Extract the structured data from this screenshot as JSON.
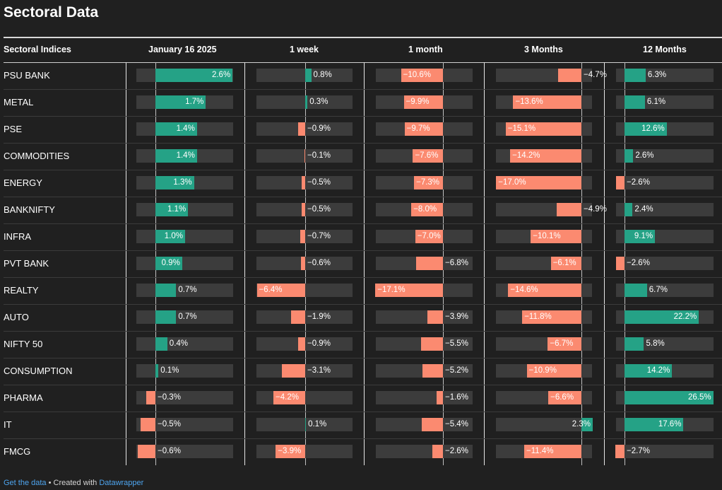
{
  "title": "Sectoral Data",
  "footer": {
    "get_data": "Get the data",
    "sep": " • Created with ",
    "tool": "Datawrapper"
  },
  "colors": {
    "positive": "#25a286",
    "negative": "#fb8a70",
    "track": "#3c3c3c",
    "background": "#202020"
  },
  "chart_data": {
    "type": "table",
    "row_header": "Sectoral Indices",
    "columns": [
      "January 16 2025",
      "1 week",
      "1 month",
      "3 Months",
      "12 Months"
    ],
    "rows": [
      {
        "name": "PSU BANK",
        "values": [
          2.6,
          0.8,
          -10.6,
          -4.7,
          6.3
        ],
        "labels": [
          "2.6%",
          "0.8%",
          "−10.6%",
          "−4.7%",
          "6.3%"
        ]
      },
      {
        "name": "METAL",
        "values": [
          1.7,
          0.3,
          -9.9,
          -13.6,
          6.1
        ],
        "labels": [
          "1.7%",
          "0.3%",
          "−9.9%",
          "−13.6%",
          "6.1%"
        ]
      },
      {
        "name": "PSE",
        "values": [
          1.4,
          -0.9,
          -9.7,
          -15.1,
          12.6
        ],
        "labels": [
          "1.4%",
          "−0.9%",
          "−9.7%",
          "−15.1%",
          "12.6%"
        ]
      },
      {
        "name": "COMMODITIES",
        "values": [
          1.4,
          -0.1,
          -7.6,
          -14.2,
          2.6
        ],
        "labels": [
          "1.4%",
          "−0.1%",
          "−7.6%",
          "−14.2%",
          "2.6%"
        ]
      },
      {
        "name": "ENERGY",
        "values": [
          1.3,
          -0.5,
          -7.3,
          -17.0,
          -2.6
        ],
        "labels": [
          "1.3%",
          "−0.5%",
          "−7.3%",
          "−17.0%",
          "−2.6%"
        ]
      },
      {
        "name": "BANKNIFTY",
        "values": [
          1.1,
          -0.5,
          -8.0,
          -4.9,
          2.4
        ],
        "labels": [
          "1.1%",
          "−0.5%",
          "−8.0%",
          "−4.9%",
          "2.4%"
        ]
      },
      {
        "name": "INFRA",
        "values": [
          1.0,
          -0.7,
          -7.0,
          -10.1,
          9.1
        ],
        "labels": [
          "1.0%",
          "−0.7%",
          "−7.0%",
          "−10.1%",
          "9.1%"
        ]
      },
      {
        "name": "PVT BANK",
        "values": [
          0.9,
          -0.6,
          -6.8,
          -6.1,
          -2.6
        ],
        "labels": [
          "0.9%",
          "−0.6%",
          "−6.8%",
          "−6.1%",
          "−2.6%"
        ]
      },
      {
        "name": "REALTY",
        "values": [
          0.7,
          -6.4,
          -17.1,
          -14.6,
          6.7
        ],
        "labels": [
          "0.7%",
          "−6.4%",
          "−17.1%",
          "−14.6%",
          "6.7%"
        ]
      },
      {
        "name": "AUTO",
        "values": [
          0.7,
          -1.9,
          -3.9,
          -11.8,
          22.2
        ],
        "labels": [
          "0.7%",
          "−1.9%",
          "−3.9%",
          "−11.8%",
          "22.2%"
        ]
      },
      {
        "name": "NIFTY 50",
        "values": [
          0.4,
          -0.9,
          -5.5,
          -6.7,
          5.8
        ],
        "labels": [
          "0.4%",
          "−0.9%",
          "−5.5%",
          "−6.7%",
          "5.8%"
        ]
      },
      {
        "name": "CONSUMPTION",
        "values": [
          0.1,
          -3.1,
          -5.2,
          -10.9,
          14.2
        ],
        "labels": [
          "0.1%",
          "−3.1%",
          "−5.2%",
          "−10.9%",
          "14.2%"
        ]
      },
      {
        "name": "PHARMA",
        "values": [
          -0.3,
          -4.2,
          -1.6,
          -6.6,
          26.5
        ],
        "labels": [
          "−0.3%",
          "−4.2%",
          "−1.6%",
          "−6.6%",
          "26.5%"
        ]
      },
      {
        "name": "IT",
        "values": [
          -0.5,
          0.1,
          -5.4,
          2.3,
          17.6
        ],
        "labels": [
          "−0.5%",
          "0.1%",
          "−5.4%",
          "2.3%",
          "17.6%"
        ]
      },
      {
        "name": "FMCG",
        "values": [
          -0.6,
          -3.9,
          -2.6,
          -11.4,
          -2.7
        ],
        "labels": [
          "−0.6%",
          "−3.9%",
          "−2.6%",
          "−11.4%",
          "−2.7%"
        ]
      }
    ]
  }
}
